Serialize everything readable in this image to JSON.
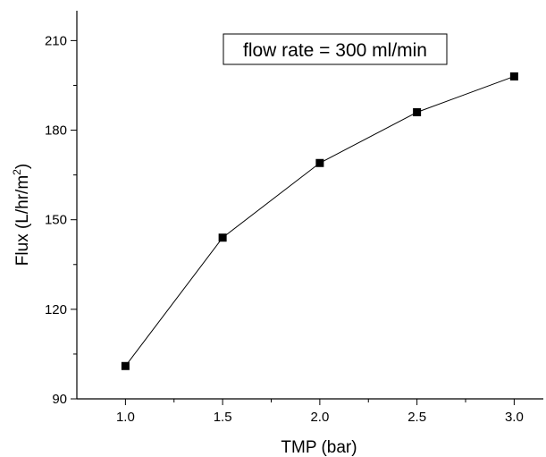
{
  "chart_data": {
    "type": "line",
    "title": "",
    "xlabel": "TMP (bar)",
    "ylabel_main": "Flux (L/hr/m",
    "ylabel_sup": "2",
    "ylabel_close": ")",
    "xlim": [
      0.75,
      3.15
    ],
    "ylim": [
      90,
      220
    ],
    "xticks": [
      1.0,
      1.5,
      2.0,
      2.5,
      3.0
    ],
    "xtick_labels": [
      "1.0",
      "1.5",
      "2.0",
      "2.5",
      "3.0"
    ],
    "yticks": [
      90,
      120,
      150,
      180,
      210
    ],
    "ytick_labels": [
      "90",
      "120",
      "150",
      "180",
      "210"
    ],
    "grid": false,
    "annotation": "flow rate = 300 ml/min",
    "series": [
      {
        "x": [
          1.0,
          1.5,
          2.0,
          2.5,
          3.0
        ],
        "y": [
          101,
          144,
          169,
          186,
          198
        ],
        "marker": "square",
        "color": "#000000"
      }
    ]
  }
}
